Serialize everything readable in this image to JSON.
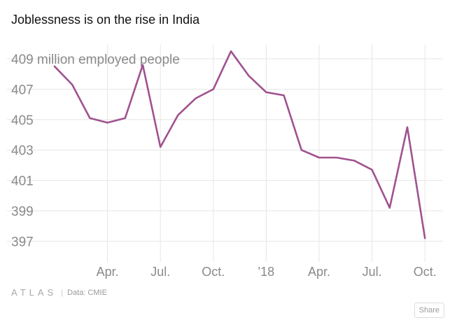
{
  "title": "Joblessness is on the rise in India",
  "footer": {
    "brand": "ATLAS",
    "source": "Data: CMIE"
  },
  "share_label": "Share",
  "colors": {
    "line": "#a0528f",
    "grid": "#e6e6e6",
    "tick": "#8a8a8a"
  },
  "chart_data": {
    "type": "line",
    "title": "Joblessness is on the rise in India",
    "ylabel": "million employed people",
    "y_unit_annotation": "409 million employed people",
    "ylim": [
      396,
      410
    ],
    "yticks": [
      397,
      399,
      401,
      403,
      405,
      407,
      409
    ],
    "x_tick_labels": [
      {
        "label": "Apr.",
        "index": 3
      },
      {
        "label": "Jul.",
        "index": 6
      },
      {
        "label": "Oct.",
        "index": 9
      },
      {
        "label": "'18",
        "index": 12
      },
      {
        "label": "Apr.",
        "index": 15
      },
      {
        "label": "Jul.",
        "index": 18
      },
      {
        "label": "Oct.",
        "index": 21
      }
    ],
    "grid": true,
    "series": [
      {
        "values": [
          408.5,
          407.3,
          405.1,
          404.8,
          405.1,
          408.6,
          403.2,
          405.3,
          406.4,
          407.0,
          409.5,
          407.9,
          406.8,
          406.6,
          403.0,
          402.5,
          402.5,
          402.3,
          401.7,
          399.2,
          404.5,
          397.2
        ]
      }
    ]
  }
}
